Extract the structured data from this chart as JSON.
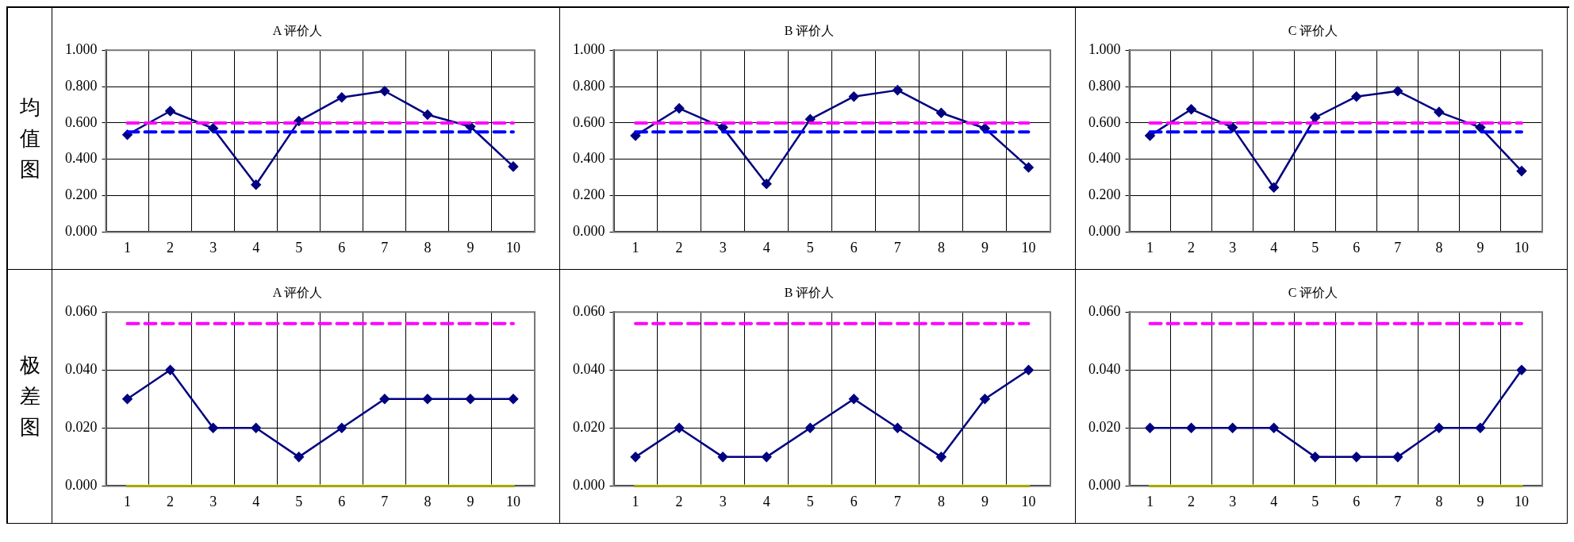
{
  "chart_data": [
    {
      "type": "line",
      "title": "A 评价人",
      "annotations": [
        "均值图"
      ],
      "categories": [
        "1",
        "2",
        "3",
        "4",
        "5",
        "6",
        "7",
        "8",
        "9",
        "10"
      ],
      "series": [
        {
          "color": "#000080",
          "values": [
            0.535,
            0.665,
            0.57,
            0.26,
            0.61,
            0.74,
            0.775,
            0.645,
            0.58,
            0.36
          ]
        }
      ],
      "ylim": [
        0,
        1
      ],
      "yticks": [
        {
          "value": 0,
          "label": "0.000"
        },
        {
          "value": 0.2,
          "label": "0.200"
        },
        {
          "value": 0.4,
          "label": "0.400"
        },
        {
          "value": 0.6,
          "label": "0.600"
        },
        {
          "value": 0.8,
          "label": "0.800"
        },
        {
          "value": 1,
          "label": "1.000"
        }
      ],
      "ref_lines": [
        {
          "axis": "y",
          "value": 0.6,
          "color": "#ff00ff",
          "line_style": "dashed"
        },
        {
          "axis": "y",
          "value": 0.55,
          "color": "#0000ff",
          "line_style": "dashed"
        }
      ],
      "grid": true,
      "marker": "diamond",
      "line_style": "solid",
      "legend": false
    },
    {
      "type": "line",
      "title": "B 评价人",
      "categories": [
        "1",
        "2",
        "3",
        "4",
        "5",
        "6",
        "7",
        "8",
        "9",
        "10"
      ],
      "series": [
        {
          "color": "#000080",
          "values": [
            0.53,
            0.68,
            0.575,
            0.265,
            0.62,
            0.745,
            0.78,
            0.655,
            0.57,
            0.355
          ]
        }
      ],
      "ylim": [
        0,
        1
      ],
      "yticks": [
        {
          "value": 0,
          "label": "0.000"
        },
        {
          "value": 0.2,
          "label": "0.200"
        },
        {
          "value": 0.4,
          "label": "0.400"
        },
        {
          "value": 0.6,
          "label": "0.600"
        },
        {
          "value": 0.8,
          "label": "0.800"
        },
        {
          "value": 1,
          "label": "1.000"
        }
      ],
      "ref_lines": [
        {
          "axis": "y",
          "value": 0.6,
          "color": "#ff00ff",
          "line_style": "dashed"
        },
        {
          "axis": "y",
          "value": 0.55,
          "color": "#0000ff",
          "line_style": "dashed"
        }
      ],
      "grid": true,
      "marker": "diamond",
      "line_style": "solid",
      "legend": false
    },
    {
      "type": "line",
      "title": "C 评价人",
      "categories": [
        "1",
        "2",
        "3",
        "4",
        "5",
        "6",
        "7",
        "8",
        "9",
        "10"
      ],
      "series": [
        {
          "color": "#000080",
          "values": [
            0.53,
            0.675,
            0.575,
            0.245,
            0.63,
            0.745,
            0.775,
            0.66,
            0.575,
            0.335
          ]
        }
      ],
      "ylim": [
        0,
        1
      ],
      "yticks": [
        {
          "value": 0,
          "label": "0.000"
        },
        {
          "value": 0.2,
          "label": "0.200"
        },
        {
          "value": 0.4,
          "label": "0.400"
        },
        {
          "value": 0.6,
          "label": "0.600"
        },
        {
          "value": 0.8,
          "label": "0.800"
        },
        {
          "value": 1,
          "label": "1.000"
        }
      ],
      "ref_lines": [
        {
          "axis": "y",
          "value": 0.6,
          "color": "#ff00ff",
          "line_style": "dashed"
        },
        {
          "axis": "y",
          "value": 0.55,
          "color": "#0000ff",
          "line_style": "dashed"
        }
      ],
      "grid": true,
      "marker": "diamond",
      "line_style": "solid",
      "legend": false
    },
    {
      "type": "line",
      "title": "A 评价人",
      "annotations": [
        "极差图"
      ],
      "categories": [
        "1",
        "2",
        "3",
        "4",
        "5",
        "6",
        "7",
        "8",
        "9",
        "10"
      ],
      "series": [
        {
          "color": "#000080",
          "values": [
            0.03,
            0.04,
            0.02,
            0.02,
            0.01,
            0.02,
            0.03,
            0.03,
            0.03,
            0.03
          ]
        }
      ],
      "ylim": [
        0,
        0.06
      ],
      "yticks": [
        {
          "value": 0,
          "label": "0.000"
        },
        {
          "value": 0.02,
          "label": "0.020"
        },
        {
          "value": 0.04,
          "label": "0.040"
        },
        {
          "value": 0.06,
          "label": "0.060"
        }
      ],
      "ref_lines": [
        {
          "axis": "y",
          "value": 0.056,
          "color": "#ff00ff",
          "line_style": "dashed"
        },
        {
          "axis": "y",
          "value": 0,
          "color": "#ffff00",
          "line_style": "solid"
        }
      ],
      "grid": true,
      "marker": "diamond",
      "line_style": "solid",
      "legend": false
    },
    {
      "type": "line",
      "title": "B 评价人",
      "categories": [
        "1",
        "2",
        "3",
        "4",
        "5",
        "6",
        "7",
        "8",
        "9",
        "10"
      ],
      "series": [
        {
          "color": "#000080",
          "values": [
            0.01,
            0.02,
            0.01,
            0.01,
            0.02,
            0.03,
            0.02,
            0.01,
            0.03,
            0.04
          ]
        }
      ],
      "ylim": [
        0,
        0.06
      ],
      "yticks": [
        {
          "value": 0,
          "label": "0.000"
        },
        {
          "value": 0.02,
          "label": "0.020"
        },
        {
          "value": 0.04,
          "label": "0.040"
        },
        {
          "value": 0.06,
          "label": "0.060"
        }
      ],
      "ref_lines": [
        {
          "axis": "y",
          "value": 0.056,
          "color": "#ff00ff",
          "line_style": "dashed"
        },
        {
          "axis": "y",
          "value": 0,
          "color": "#ffff00",
          "line_style": "solid"
        }
      ],
      "grid": true,
      "marker": "diamond",
      "line_style": "solid",
      "legend": false
    },
    {
      "type": "line",
      "title": "C 评价人",
      "categories": [
        "1",
        "2",
        "3",
        "4",
        "5",
        "6",
        "7",
        "8",
        "9",
        "10"
      ],
      "series": [
        {
          "color": "#000080",
          "values": [
            0.02,
            0.02,
            0.02,
            0.02,
            0.01,
            0.01,
            0.01,
            0.02,
            0.02,
            0.04
          ]
        }
      ],
      "ylim": [
        0,
        0.06
      ],
      "yticks": [
        {
          "value": 0,
          "label": "0.000"
        },
        {
          "value": 0.02,
          "label": "0.020"
        },
        {
          "value": 0.04,
          "label": "0.040"
        },
        {
          "value": 0.06,
          "label": "0.060"
        }
      ],
      "ref_lines": [
        {
          "axis": "y",
          "value": 0.056,
          "color": "#ff00ff",
          "line_style": "dashed"
        },
        {
          "axis": "y",
          "value": 0,
          "color": "#ffff00",
          "line_style": "solid"
        }
      ],
      "grid": true,
      "marker": "diamond",
      "line_style": "solid",
      "legend": false
    }
  ]
}
